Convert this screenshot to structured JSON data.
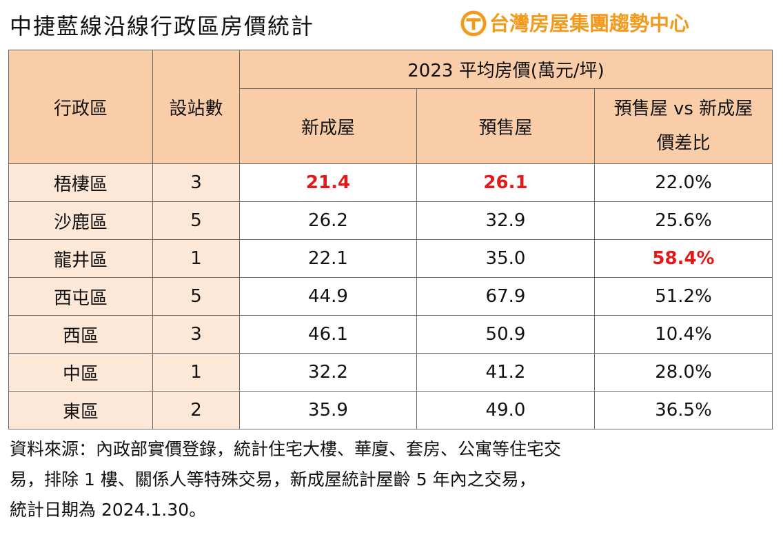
{
  "title": "中捷藍線沿線行政區房價統計",
  "brand": {
    "name": "台灣房屋集團趨勢中心",
    "logo_icon": "tw-housing-logo-icon",
    "color": "#f39a1c"
  },
  "table": {
    "headers": {
      "district": "行政區",
      "stations": "設站數",
      "group": "2023 平均房價(萬元/坪)",
      "new_house": "新成屋",
      "presale": "預售屋",
      "diff_line1": "預售屋 vs 新成屋",
      "diff_line2": "價差比"
    },
    "rows": [
      {
        "district": "梧棲區",
        "stations": "3",
        "new_house": "21.4",
        "presale": "26.1",
        "diff": "22.0%"
      },
      {
        "district": "沙鹿區",
        "stations": "5",
        "new_house": "26.2",
        "presale": "32.9",
        "diff": "25.6%"
      },
      {
        "district": "龍井區",
        "stations": "1",
        "new_house": "22.1",
        "presale": "35.0",
        "diff": "58.4%"
      },
      {
        "district": "西屯區",
        "stations": "5",
        "new_house": "44.9",
        "presale": "67.9",
        "diff": "51.2%"
      },
      {
        "district": "西區",
        "stations": "3",
        "new_house": "46.1",
        "presale": "50.9",
        "diff": "10.4%"
      },
      {
        "district": "中區",
        "stations": "1",
        "new_house": "32.2",
        "presale": "41.2",
        "diff": "28.0%"
      },
      {
        "district": "東區",
        "stations": "2",
        "new_house": "35.9",
        "presale": "49.0",
        "diff": "36.5%"
      }
    ]
  },
  "note": {
    "line1": "資料來源：內政部實價登錄，統計住宅大樓、華廈、套房、公寓等住宅交",
    "line2": "易，排除 1 樓、關係人等特殊交易，新成屋統計屋齡 5 年內之交易，",
    "line3": "統計日期為 2024.1.30。"
  },
  "colors": {
    "header_bg": "#f9cda8",
    "row_label_bg": "#fde7d6",
    "highlight": "#e11919"
  }
}
